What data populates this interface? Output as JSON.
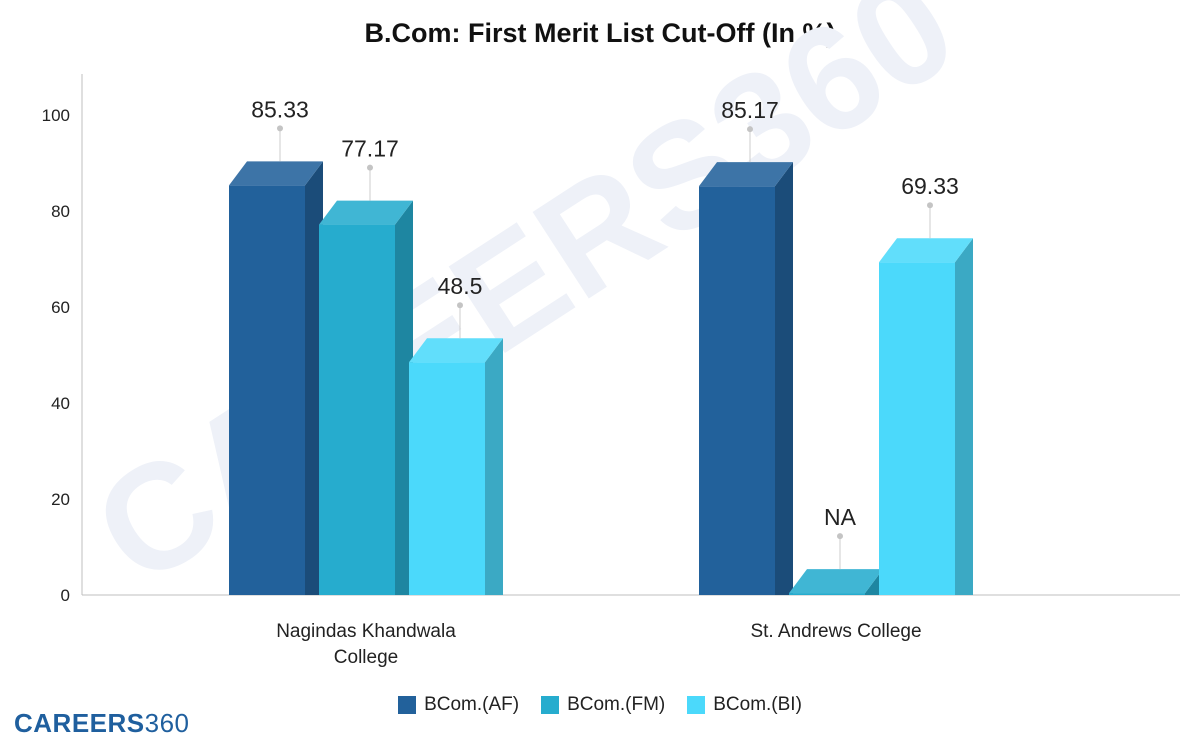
{
  "chart_data": {
    "type": "bar",
    "title": "B.Com: First Merit List Cut-Off (In %)",
    "categories": [
      "Nagindas Khandwala College",
      "St. Andrews College"
    ],
    "category_lines": [
      [
        "Nagindas Khandwala",
        "College"
      ],
      [
        "St. Andrews College"
      ]
    ],
    "series": [
      {
        "name": "BCom.(AF)",
        "values": [
          85.33,
          85.17
        ],
        "labels": [
          "85.33",
          "85.17"
        ],
        "color": "#22619b"
      },
      {
        "name": "BCom.(FM)",
        "values": [
          77.17,
          null
        ],
        "labels": [
          "77.17",
          "NA"
        ],
        "color": "#26acce"
      },
      {
        "name": "BCom.(BI)",
        "values": [
          48.5,
          69.33
        ],
        "labels": [
          "48.5",
          "69.33"
        ],
        "color": "#4bd9fb"
      }
    ],
    "ylim": [
      0,
      100
    ],
    "yticks": [
      "0",
      "20",
      "40",
      "60",
      "80",
      "100"
    ],
    "xlabel": "",
    "ylabel": "",
    "legend": "bottom",
    "grid": false
  },
  "branding": {
    "logo_part1": "CAREERS",
    "logo_part2": "360",
    "watermark": "CAREERS360"
  }
}
